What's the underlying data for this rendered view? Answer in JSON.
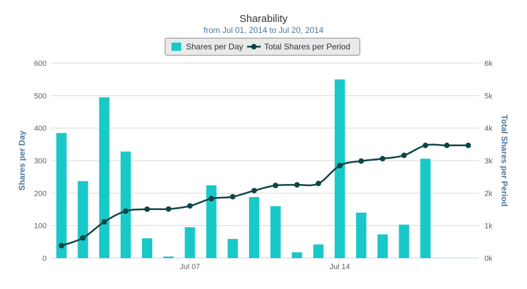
{
  "chart_data": {
    "type": "bar",
    "title": "Sharability",
    "subtitle": "from Jul 01, 2014 to Jul 20, 2014",
    "x": [
      "2014-07-01",
      "2014-07-02",
      "2014-07-03",
      "2014-07-04",
      "2014-07-05",
      "2014-07-06",
      "2014-07-07",
      "2014-07-08",
      "2014-07-09",
      "2014-07-10",
      "2014-07-11",
      "2014-07-12",
      "2014-07-13",
      "2014-07-14",
      "2014-07-15",
      "2014-07-16",
      "2014-07-17",
      "2014-07-18",
      "2014-07-19",
      "2014-07-20"
    ],
    "x_tick_labels": [
      {
        "date": "2014-07-07",
        "label": "Jul 07"
      },
      {
        "date": "2014-07-14",
        "label": "Jul 14"
      }
    ],
    "series": [
      {
        "name": "Shares per Day",
        "type": "bar",
        "axis": "left",
        "color": "#19c8c8",
        "values": [
          385,
          237,
          495,
          328,
          61,
          5,
          95,
          224,
          59,
          188,
          160,
          18,
          42,
          550,
          140,
          73,
          103,
          306,
          0,
          0
        ]
      },
      {
        "name": "Total Shares per Period",
        "type": "line",
        "axis": "right",
        "color": "#0e4545",
        "values": [
          385,
          622,
          1117,
          1445,
          1506,
          1511,
          1606,
          1830,
          1889,
          2077,
          2237,
          2255,
          2297,
          2847,
          2987,
          3060,
          3163,
          3469,
          3469,
          3469
        ]
      }
    ],
    "ylabel": "Shares per Day",
    "ylim": [
      0,
      600
    ],
    "yticks": [
      0,
      100,
      200,
      300,
      400,
      500,
      600
    ],
    "y2label": "Total Shares per Period",
    "y2lim": [
      0,
      6000
    ],
    "y2ticks": [
      {
        "value": 0,
        "label": "0k"
      },
      {
        "value": 1000,
        "label": "1k"
      },
      {
        "value": 2000,
        "label": "2k"
      },
      {
        "value": 3000,
        "label": "3k"
      },
      {
        "value": 4000,
        "label": "4k"
      },
      {
        "value": 5000,
        "label": "5k"
      },
      {
        "value": 6000,
        "label": "6k"
      }
    ],
    "grid": true,
    "legend_position": "top-center",
    "colors": {
      "axis_title": "#4d759e",
      "tick_label": "#606060",
      "grid": "#d8d8d8",
      "axis_line": "#c0d0e0"
    }
  }
}
